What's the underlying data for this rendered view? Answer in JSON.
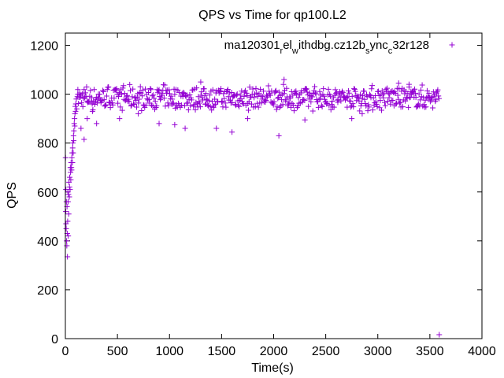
{
  "chart_data": {
    "type": "scatter",
    "title": "QPS vs Time for qp100.L2",
    "xlabel": "Time(s)",
    "ylabel": "QPS",
    "xlim": [
      0,
      4000
    ],
    "ylim": [
      0,
      1250
    ],
    "xticks": [
      0,
      500,
      1000,
      1500,
      2000,
      2500,
      3000,
      3500,
      4000
    ],
    "yticks": [
      0,
      200,
      400,
      600,
      800,
      1000,
      1200
    ],
    "grid": false,
    "legend_position": "top-right",
    "marker": "+",
    "colors": {
      "series": "#9400d3",
      "axes": "#000000"
    },
    "series": [
      {
        "name": "ma120301_rel_withdbg.cz12b_sync_c32r128",
        "name_parts": [
          {
            "t": "ma120301",
            "sub": false
          },
          {
            "t": "r",
            "sub": true
          },
          {
            "t": "el",
            "sub": false
          },
          {
            "t": "w",
            "sub": true
          },
          {
            "t": "ithdbg.cz12b",
            "sub": false
          },
          {
            "t": "s",
            "sub": true
          },
          {
            "t": "ync",
            "sub": false
          },
          {
            "t": "c",
            "sub": true
          },
          {
            "t": "32r128",
            "sub": false
          }
        ],
        "ramp_points": [
          [
            2,
            740
          ],
          [
            4,
            520
          ],
          [
            5,
            610
          ],
          [
            6,
            470
          ],
          [
            8,
            450
          ],
          [
            10,
            560
          ],
          [
            12,
            400
          ],
          [
            14,
            380
          ],
          [
            16,
            540
          ],
          [
            18,
            430
          ],
          [
            20,
            335
          ],
          [
            22,
            480
          ],
          [
            24,
            600
          ],
          [
            26,
            560
          ],
          [
            28,
            420
          ],
          [
            30,
            590
          ],
          [
            32,
            510
          ],
          [
            35,
            640
          ],
          [
            38,
            580
          ],
          [
            40,
            620
          ],
          [
            42,
            660
          ],
          [
            45,
            610
          ],
          [
            48,
            700
          ],
          [
            50,
            680
          ],
          [
            52,
            650
          ],
          [
            55,
            720
          ],
          [
            58,
            700
          ],
          [
            60,
            690
          ],
          [
            62,
            740
          ],
          [
            65,
            760
          ],
          [
            68,
            720
          ],
          [
            70,
            780
          ],
          [
            72,
            800
          ],
          [
            75,
            760
          ],
          [
            78,
            830
          ],
          [
            80,
            810
          ],
          [
            82,
            850
          ],
          [
            85,
            880
          ],
          [
            88,
            900
          ],
          [
            90,
            870
          ],
          [
            92,
            920
          ],
          [
            95,
            950
          ],
          [
            98,
            930
          ],
          [
            100,
            960
          ],
          [
            105,
            980
          ],
          [
            110,
            940
          ],
          [
            115,
            990
          ],
          [
            120,
            1000
          ]
        ],
        "steady_state": {
          "x_range": [
            120,
            3590
          ],
          "sample_step": 6,
          "center": 985,
          "band": [
            945,
            1025
          ],
          "typical": [
            930,
            1040
          ]
        },
        "outliers": [
          [
            150,
            860
          ],
          [
            180,
            815
          ],
          [
            210,
            900
          ],
          [
            260,
            930
          ],
          [
            300,
            880
          ],
          [
            520,
            900
          ],
          [
            700,
            920
          ],
          [
            900,
            880
          ],
          [
            1050,
            875
          ],
          [
            1150,
            860
          ],
          [
            1300,
            1050
          ],
          [
            1350,
            960
          ],
          [
            1450,
            860
          ],
          [
            1600,
            845
          ],
          [
            1750,
            900
          ],
          [
            2050,
            830
          ],
          [
            2100,
            1060
          ],
          [
            2300,
            895
          ],
          [
            2750,
            900
          ],
          [
            2850,
            920
          ],
          [
            3200,
            1045
          ],
          [
            3300,
            1040
          ],
          [
            3590,
            16
          ]
        ]
      }
    ]
  }
}
